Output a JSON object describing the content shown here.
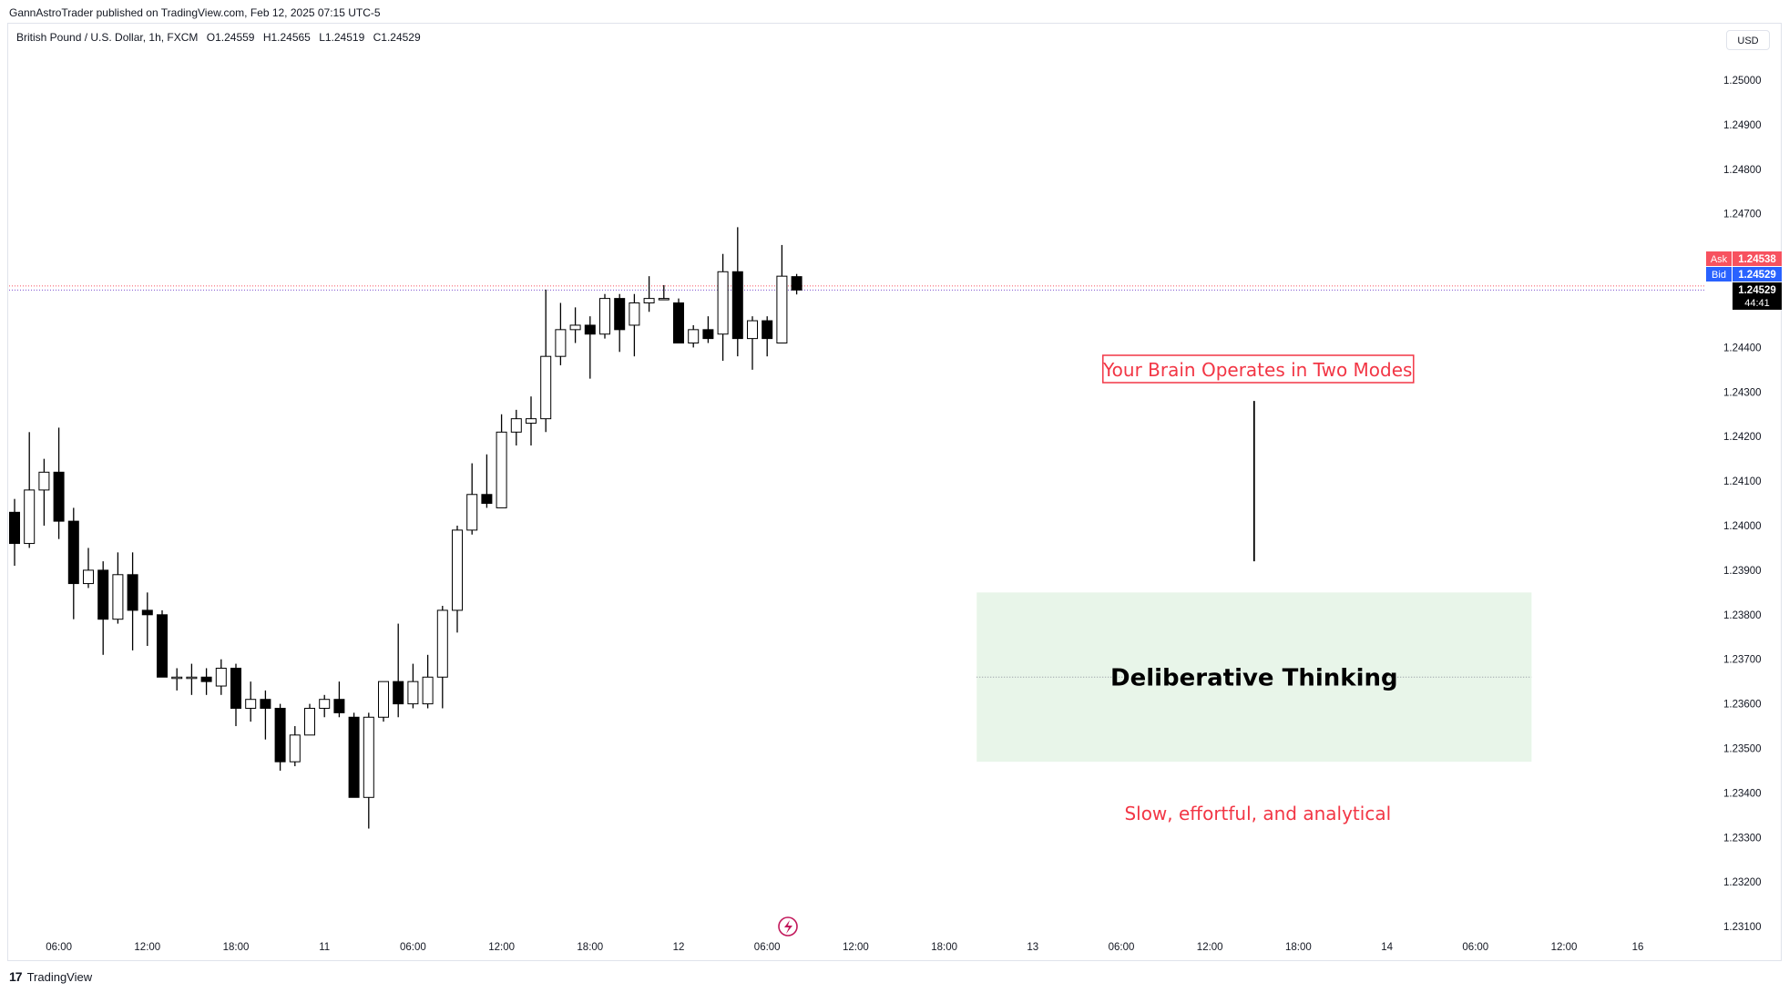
{
  "header": {
    "publish_text": "GannAstroTrader published on TradingView.com, Feb 12, 2025 07:15 UTC-5"
  },
  "legend": {
    "symbol": "British Pound / U.S. Dollar, 1h, FXCM",
    "open": "O1.24559",
    "high": "H1.24565",
    "low": "L1.24519",
    "close": "C1.24529"
  },
  "currency_button": "USD",
  "price_tags": {
    "ask_label": "Ask",
    "ask_value": "1.24538",
    "bid_label": "Bid",
    "bid_value": "1.24529",
    "last_value": "1.24529",
    "countdown": "44:41"
  },
  "annotations": {
    "box_title": "Your Brain Operates in Two Modes",
    "zone_label": "Deliberative Thinking",
    "subtitle": "Slow, effortful, and analytical"
  },
  "colors": {
    "up": "#ffffff",
    "down": "#000000",
    "wick": "#000000",
    "accent_red": "#f23645",
    "ask_bg": "#f7525f",
    "bid_bg": "#2962ff",
    "zone_fill": "#e8f5e9"
  },
  "footer": {
    "brand": "TradingView"
  },
  "chart_data": {
    "type": "candlestick",
    "timeframe": "1h",
    "y_ticks": [
      1.25,
      1.249,
      1.248,
      1.247,
      1.244,
      1.243,
      1.242,
      1.241,
      1.24,
      1.239,
      1.238,
      1.237,
      1.236,
      1.235,
      1.234,
      1.233,
      1.232,
      1.231
    ],
    "y_tick_labels": [
      "1.25000",
      "1.24900",
      "1.24800",
      "1.24700",
      "1.24400",
      "1.24300",
      "1.24200",
      "1.24100",
      "1.24000",
      "1.23900",
      "1.23800",
      "1.23700",
      "1.23600",
      "1.23500",
      "1.23400",
      "1.23300",
      "1.23200",
      "1.23100"
    ],
    "ylim": [
      1.2305,
      1.2517
    ],
    "x_ticks": [
      {
        "bar": 3,
        "label": "06:00"
      },
      {
        "bar": 9,
        "label": "12:00"
      },
      {
        "bar": 15,
        "label": "18:00"
      },
      {
        "bar": 21,
        "label": "11"
      },
      {
        "bar": 27,
        "label": "06:00"
      },
      {
        "bar": 33,
        "label": "12:00"
      },
      {
        "bar": 39,
        "label": "18:00"
      },
      {
        "bar": 45,
        "label": "12"
      },
      {
        "bar": 51,
        "label": "06:00"
      },
      {
        "bar": 57,
        "label": "12:00"
      },
      {
        "bar": 63,
        "label": "18:00"
      },
      {
        "bar": 69,
        "label": "13"
      },
      {
        "bar": 75,
        "label": "06:00"
      },
      {
        "bar": 81,
        "label": "12:00"
      },
      {
        "bar": 87,
        "label": "18:00"
      },
      {
        "bar": 93,
        "label": "14"
      },
      {
        "bar": 99,
        "label": "06:00"
      },
      {
        "bar": 105,
        "label": "12:00"
      },
      {
        "bar": 110,
        "label": "16"
      }
    ],
    "candles": [
      {
        "o": 1.2403,
        "h": 1.2406,
        "l": 1.2391,
        "c": 1.2396
      },
      {
        "o": 1.2396,
        "h": 1.2421,
        "l": 1.2395,
        "c": 1.2408
      },
      {
        "o": 1.2408,
        "h": 1.2415,
        "l": 1.24,
        "c": 1.2412
      },
      {
        "o": 1.2412,
        "h": 1.2422,
        "l": 1.2397,
        "c": 1.2401
      },
      {
        "o": 1.2401,
        "h": 1.2404,
        "l": 1.2379,
        "c": 1.2387
      },
      {
        "o": 1.2387,
        "h": 1.2395,
        "l": 1.2386,
        "c": 1.239
      },
      {
        "o": 1.239,
        "h": 1.2392,
        "l": 1.2371,
        "c": 1.2379
      },
      {
        "o": 1.2379,
        "h": 1.2394,
        "l": 1.2378,
        "c": 1.2389
      },
      {
        "o": 1.2389,
        "h": 1.2394,
        "l": 1.2372,
        "c": 1.2381
      },
      {
        "o": 1.2381,
        "h": 1.2385,
        "l": 1.2373,
        "c": 1.238
      },
      {
        "o": 1.238,
        "h": 1.2381,
        "l": 1.2366,
        "c": 1.2366
      },
      {
        "o": 1.2366,
        "h": 1.2368,
        "l": 1.2363,
        "c": 1.2366
      },
      {
        "o": 1.2366,
        "h": 1.2369,
        "l": 1.2362,
        "c": 1.2366
      },
      {
        "o": 1.2366,
        "h": 1.2368,
        "l": 1.2362,
        "c": 1.2365
      },
      {
        "o": 1.2364,
        "h": 1.237,
        "l": 1.2362,
        "c": 1.2368
      },
      {
        "o": 1.2368,
        "h": 1.2369,
        "l": 1.2355,
        "c": 1.2359
      },
      {
        "o": 1.2359,
        "h": 1.2365,
        "l": 1.2356,
        "c": 1.2361
      },
      {
        "o": 1.2361,
        "h": 1.2363,
        "l": 1.2352,
        "c": 1.2359
      },
      {
        "o": 1.2359,
        "h": 1.236,
        "l": 1.2345,
        "c": 1.2347
      },
      {
        "o": 1.2347,
        "h": 1.2355,
        "l": 1.2346,
        "c": 1.2353
      },
      {
        "o": 1.2353,
        "h": 1.236,
        "l": 1.2353,
        "c": 1.2359
      },
      {
        "o": 1.2359,
        "h": 1.2362,
        "l": 1.2357,
        "c": 1.2361
      },
      {
        "o": 1.2361,
        "h": 1.2365,
        "l": 1.2357,
        "c": 1.2358
      },
      {
        "o": 1.2357,
        "h": 1.2358,
        "l": 1.2339,
        "c": 1.2339
      },
      {
        "o": 1.2339,
        "h": 1.2358,
        "l": 1.2332,
        "c": 1.2357
      },
      {
        "o": 1.2357,
        "h": 1.2363,
        "l": 1.2356,
        "c": 1.2365
      },
      {
        "o": 1.2365,
        "h": 1.2378,
        "l": 1.2357,
        "c": 1.236
      },
      {
        "o": 1.236,
        "h": 1.2369,
        "l": 1.2359,
        "c": 1.2365
      },
      {
        "o": 1.236,
        "h": 1.2371,
        "l": 1.2359,
        "c": 1.2366
      },
      {
        "o": 1.2366,
        "h": 1.2382,
        "l": 1.2359,
        "c": 1.2381
      },
      {
        "o": 1.2381,
        "h": 1.24,
        "l": 1.2376,
        "c": 1.2399
      },
      {
        "o": 1.2399,
        "h": 1.2414,
        "l": 1.2398,
        "c": 1.2407
      },
      {
        "o": 1.2407,
        "h": 1.2416,
        "l": 1.2404,
        "c": 1.2405
      },
      {
        "o": 1.2404,
        "h": 1.2425,
        "l": 1.2404,
        "c": 1.2421
      },
      {
        "o": 1.2421,
        "h": 1.2426,
        "l": 1.2418,
        "c": 1.2424
      },
      {
        "o": 1.2423,
        "h": 1.2429,
        "l": 1.2418,
        "c": 1.2424
      },
      {
        "o": 1.2424,
        "h": 1.2453,
        "l": 1.2421,
        "c": 1.2438
      },
      {
        "o": 1.2438,
        "h": 1.245,
        "l": 1.2436,
        "c": 1.2444
      },
      {
        "o": 1.2444,
        "h": 1.2449,
        "l": 1.2441,
        "c": 1.2445
      },
      {
        "o": 1.2445,
        "h": 1.2447,
        "l": 1.2433,
        "c": 1.2443
      },
      {
        "o": 1.2443,
        "h": 1.2452,
        "l": 1.2442,
        "c": 1.2451
      },
      {
        "o": 1.2451,
        "h": 1.2452,
        "l": 1.2439,
        "c": 1.2444
      },
      {
        "o": 1.2445,
        "h": 1.2452,
        "l": 1.2438,
        "c": 1.245
      },
      {
        "o": 1.245,
        "h": 1.2456,
        "l": 1.2448,
        "c": 1.2451
      },
      {
        "o": 1.2451,
        "h": 1.2454,
        "l": 1.2451,
        "c": 1.2451
      },
      {
        "o": 1.245,
        "h": 1.2451,
        "l": 1.2441,
        "c": 1.2441
      },
      {
        "o": 1.2441,
        "h": 1.2445,
        "l": 1.244,
        "c": 1.2444
      },
      {
        "o": 1.2444,
        "h": 1.2447,
        "l": 1.2441,
        "c": 1.2442
      },
      {
        "o": 1.2443,
        "h": 1.2461,
        "l": 1.2437,
        "c": 1.2457
      },
      {
        "o": 1.2457,
        "h": 1.2467,
        "l": 1.2438,
        "c": 1.2442
      },
      {
        "o": 1.2442,
        "h": 1.2447,
        "l": 1.2435,
        "c": 1.2446
      },
      {
        "o": 1.2446,
        "h": 1.2447,
        "l": 1.2438,
        "c": 1.2442
      },
      {
        "o": 1.2441,
        "h": 1.2463,
        "l": 1.2441,
        "c": 1.2456
      },
      {
        "o": 1.24559,
        "h": 1.24565,
        "l": 1.24519,
        "c": 1.24529
      }
    ],
    "bid_price": 1.24529,
    "ask_price": 1.24538,
    "deliberative_zone": {
      "top": 1.2385,
      "bottom": 1.2347,
      "mid": 1.2366,
      "bar_start": 65.2,
      "bar_end": 102.8
    },
    "connector": {
      "bar": 84,
      "top": 1.2428,
      "bottom": 1.2392
    }
  }
}
